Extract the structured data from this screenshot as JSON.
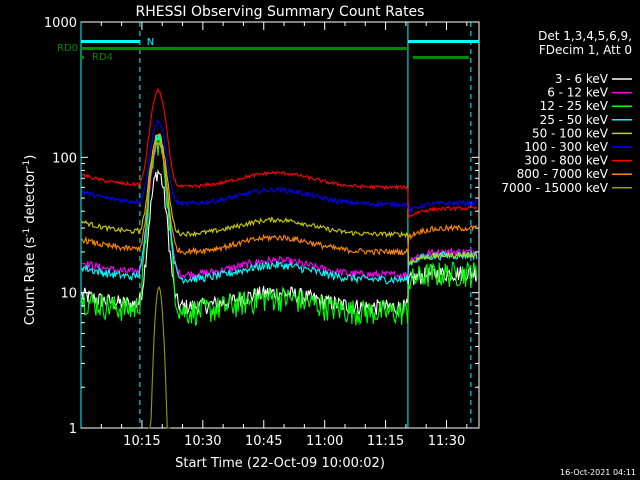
{
  "chart_data": {
    "type": "line",
    "title": "RHESSI Observing Summary Count Rates",
    "xlabel": "Start Time (22-Oct-09 10:00:02)",
    "ylabel": "Count Rate (s",
    "ylabel_sup": "-1",
    "ylabel_mid": " detector",
    "ylabel_end": ")",
    "yscale": "log",
    "ylim": [
      1,
      1000
    ],
    "xlim_minutes": [
      0,
      98
    ],
    "y_ticks": [
      {
        "v": 1,
        "label": "1"
      },
      {
        "v": 10,
        "label": "10"
      },
      {
        "v": 100,
        "label": "100"
      },
      {
        "v": 1000,
        "label": "1000"
      }
    ],
    "x_ticks": [
      {
        "m": 15,
        "label": "10:15"
      },
      {
        "m": 30,
        "label": "10:30"
      },
      {
        "m": 45,
        "label": "10:45"
      },
      {
        "m": 60,
        "label": "11:00"
      },
      {
        "m": 75,
        "label": "11:15"
      },
      {
        "m": 90,
        "label": "11:30"
      }
    ],
    "legend_header": [
      "Det 1,3,4,5,6,9,",
      "FDecim 1, Att 0"
    ],
    "series": [
      {
        "name": "3 - 6 keV",
        "color": "#ffffff",
        "base": 7.8,
        "peak": 78,
        "mid": 8.9,
        "end": 14,
        "noise": 0.14
      },
      {
        "name": "6 - 12 keV",
        "color": "#ff00ff",
        "base": 13.5,
        "peak": 125,
        "mid": 13.5,
        "end": 20,
        "noise": 0.07
      },
      {
        "name": "12 - 25 keV",
        "color": "#00ff00",
        "base": 7.2,
        "peak": 130,
        "mid": 8.1,
        "end": 14,
        "noise": 0.22
      },
      {
        "name": "25 - 50 keV",
        "color": "#00ffff",
        "base": 12.5,
        "peak": 140,
        "mid": 12.5,
        "end": 19,
        "noise": 0.07
      },
      {
        "name": "50 - 100 keV",
        "color": "#cccc00",
        "base": 27,
        "peak": 150,
        "mid": 27,
        "end": 19,
        "noise": 0.04
      },
      {
        "name": "100 - 300 keV",
        "color": "#0000ff",
        "base": 45,
        "peak": 185,
        "mid": 45,
        "end": 46,
        "noise": 0.04
      },
      {
        "name": "300 - 800 keV",
        "color": "#ff0000",
        "base": 60,
        "peak": 310,
        "mid": 73,
        "end": 42,
        "noise": 0.03
      },
      {
        "name": "800 - 7000 keV",
        "color": "#ff8800",
        "base": 20,
        "peak": 130,
        "mid": 20,
        "end": 30,
        "noise": 0.05
      },
      {
        "name": "7000 - 15000 keV",
        "color": "#999900",
        "base": 0,
        "peak": 11,
        "mid": 0,
        "end": 0,
        "noise": 0
      }
    ],
    "flags": [
      {
        "name": "N",
        "color": "#00ffff",
        "label": "N"
      },
      {
        "name": "RD0",
        "color": "#008800",
        "label": "RD0"
      },
      {
        "name": "RD4",
        "color": "#008800",
        "label": "RD4"
      }
    ],
    "grid": false,
    "legend_placement": "right"
  },
  "footer": {
    "timestamp": "16-Oct-2021 04:11"
  }
}
